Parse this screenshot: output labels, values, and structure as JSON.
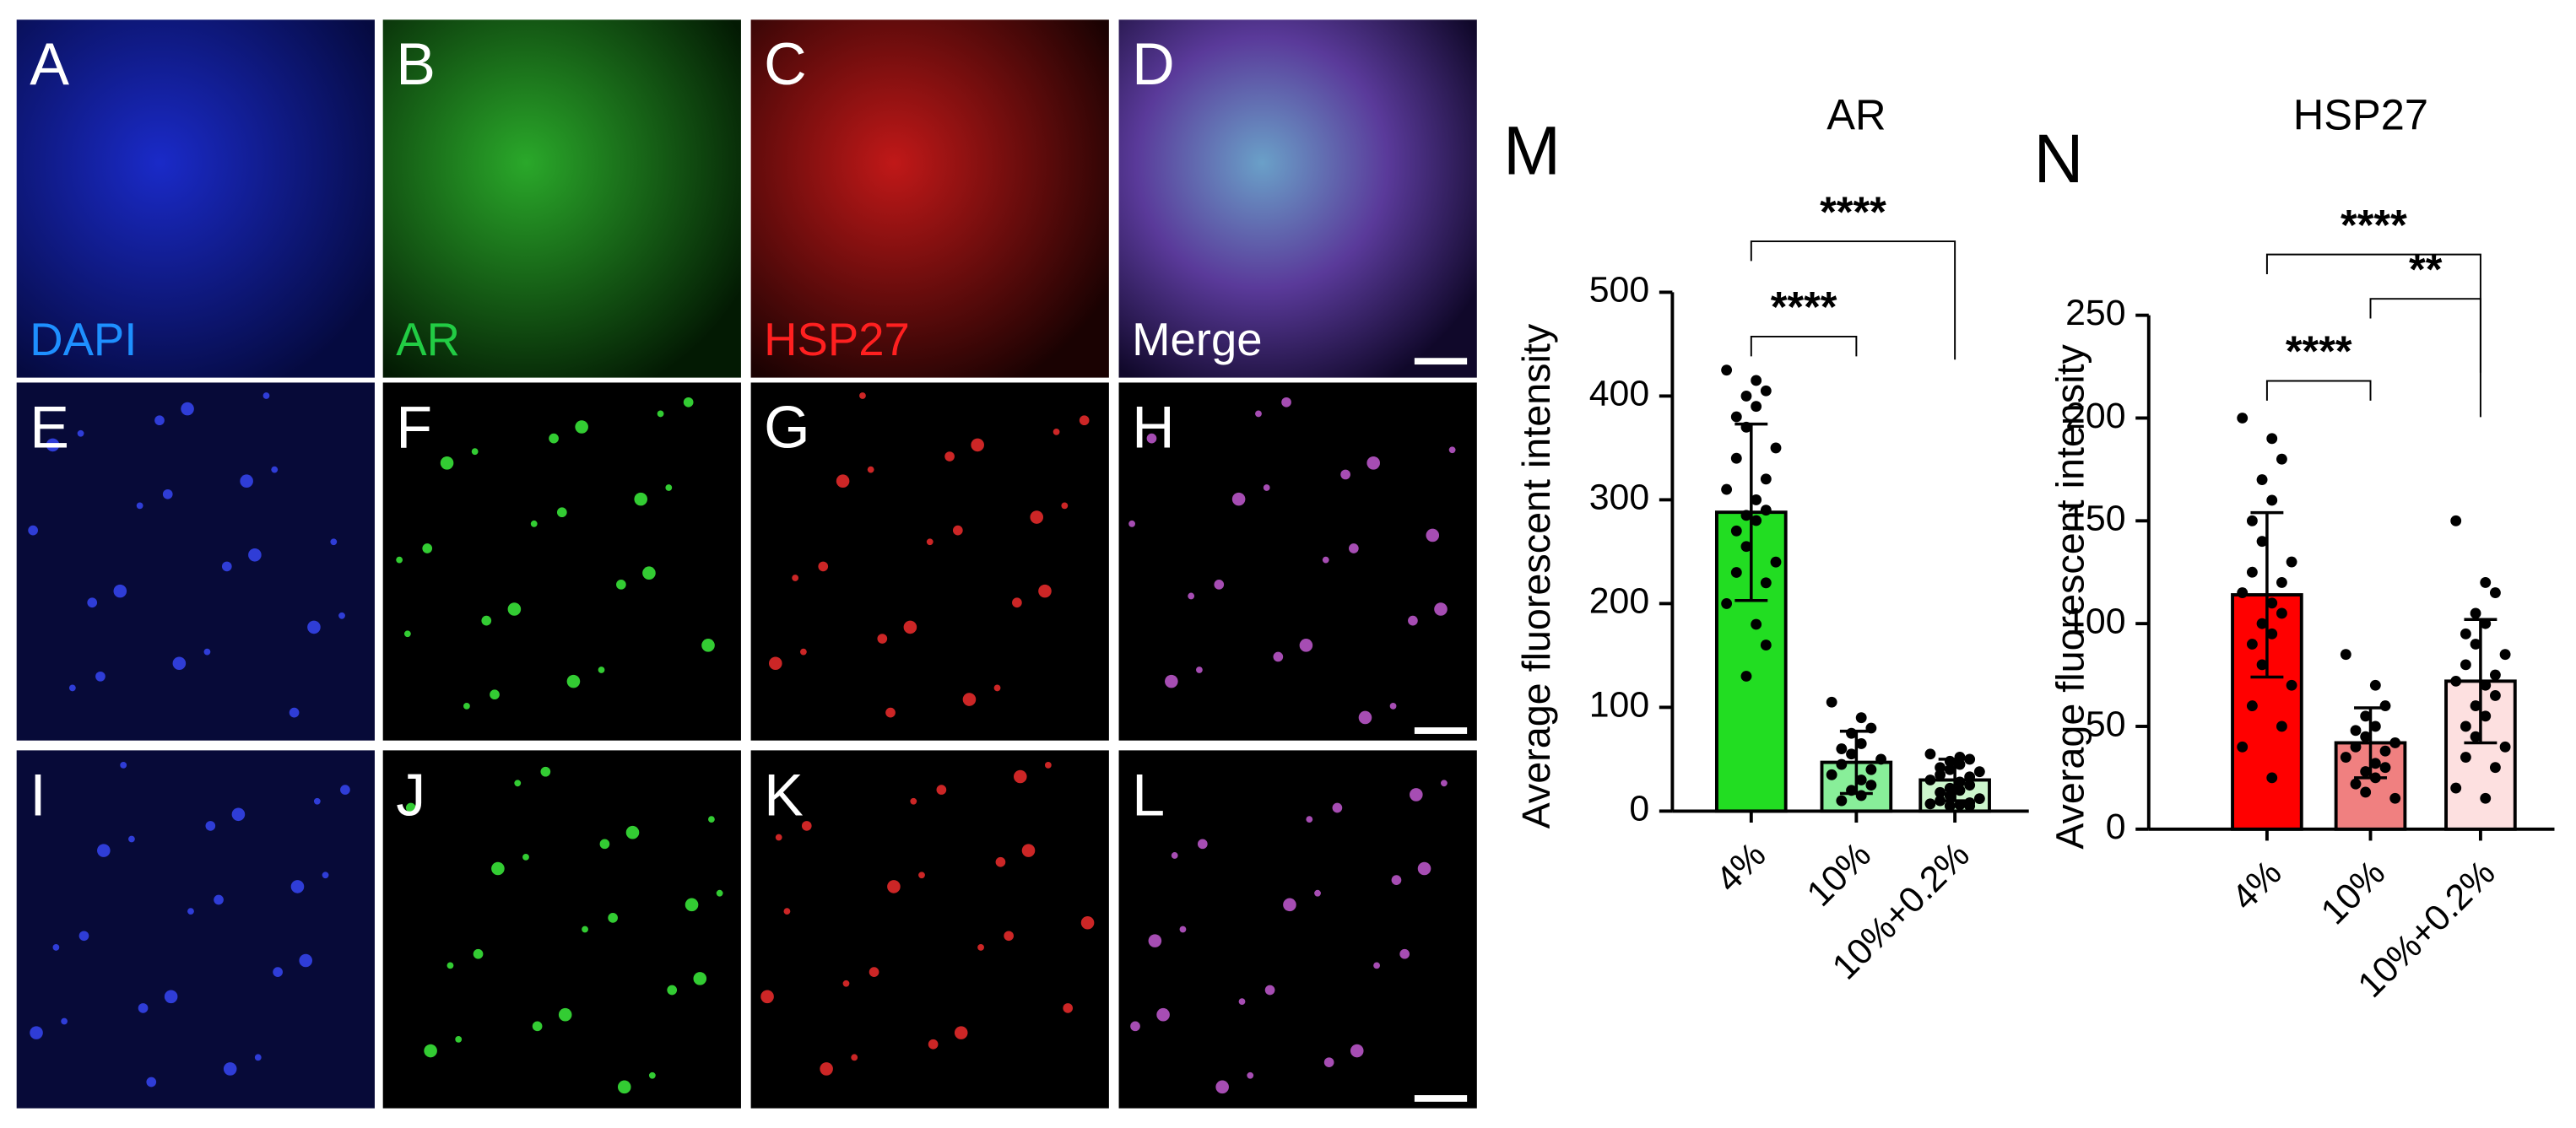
{
  "panels": [
    {
      "letter": "A",
      "label": "DAPI"
    },
    {
      "letter": "B",
      "label": "AR"
    },
    {
      "letter": "C",
      "label": "HSP27"
    },
    {
      "letter": "D",
      "label": "Merge"
    },
    {
      "letter": "E"
    },
    {
      "letter": "F"
    },
    {
      "letter": "G"
    },
    {
      "letter": "H"
    },
    {
      "letter": "I"
    },
    {
      "letter": "J"
    },
    {
      "letter": "K"
    },
    {
      "letter": "L"
    }
  ],
  "chart_data": [
    {
      "type": "bar",
      "panel": "M",
      "title": "AR",
      "y_label": "Average fluorescent intensity",
      "categories": [
        "4%",
        "10%",
        "10%+0.2%"
      ],
      "values": [
        288,
        47,
        30
      ],
      "errors": [
        85,
        30,
        20
      ],
      "colors": [
        "#22dd22",
        "#88ee99",
        "#ccf5cc"
      ],
      "points": [
        [
          425,
          415,
          405,
          400,
          390,
          380,
          370,
          350,
          340,
          320,
          310,
          300,
          290,
          285,
          280,
          270,
          255,
          240,
          230,
          220,
          200,
          180,
          160,
          130
        ],
        [
          105,
          90,
          80,
          75,
          65,
          60,
          55,
          50,
          45,
          40,
          35,
          30,
          25,
          20,
          15,
          10
        ],
        [
          55,
          52,
          50,
          48,
          45,
          42,
          40,
          38,
          35,
          33,
          30,
          28,
          25,
          22,
          20,
          18,
          15,
          12,
          10,
          8,
          7,
          6,
          5,
          5
        ]
      ],
      "significance": [
        {
          "from": "4%",
          "to": "10%",
          "label": "****"
        },
        {
          "from": "4%",
          "to": "10%+0.2%",
          "label": "****"
        }
      ],
      "ylim": [
        0,
        500
      ],
      "yticks": [
        0,
        100,
        200,
        300,
        400,
        500
      ]
    },
    {
      "type": "bar",
      "panel": "N",
      "title": "HSP27",
      "y_label": "Average fluorescent intensity",
      "categories": [
        "4%",
        "10%",
        "10%+0.2%"
      ],
      "values": [
        114,
        42,
        72
      ],
      "errors": [
        40,
        17,
        30
      ],
      "colors": [
        "#ff0000",
        "#f08080",
        "#fde0e0"
      ],
      "points": [
        [
          200,
          190,
          180,
          170,
          160,
          150,
          140,
          130,
          125,
          120,
          115,
          110,
          105,
          100,
          95,
          90,
          80,
          70,
          60,
          50,
          40,
          25
        ],
        [
          85,
          70,
          60,
          55,
          50,
          48,
          45,
          42,
          40,
          38,
          35,
          32,
          30,
          28,
          25,
          22,
          18,
          15
        ],
        [
          150,
          120,
          115,
          105,
          100,
          95,
          90,
          85,
          80,
          75,
          72,
          70,
          65,
          60,
          55,
          50,
          45,
          40,
          35,
          30,
          20,
          15
        ]
      ],
      "significance": [
        {
          "from": "4%",
          "to": "10%",
          "label": "****"
        },
        {
          "from": "10%",
          "to": "10%+0.2%",
          "label": "**"
        },
        {
          "from": "4%",
          "to": "10%+0.2%",
          "label": "****"
        }
      ],
      "ylim": [
        0,
        250
      ],
      "yticks": [
        0,
        50,
        100,
        150,
        200,
        250
      ]
    }
  ]
}
